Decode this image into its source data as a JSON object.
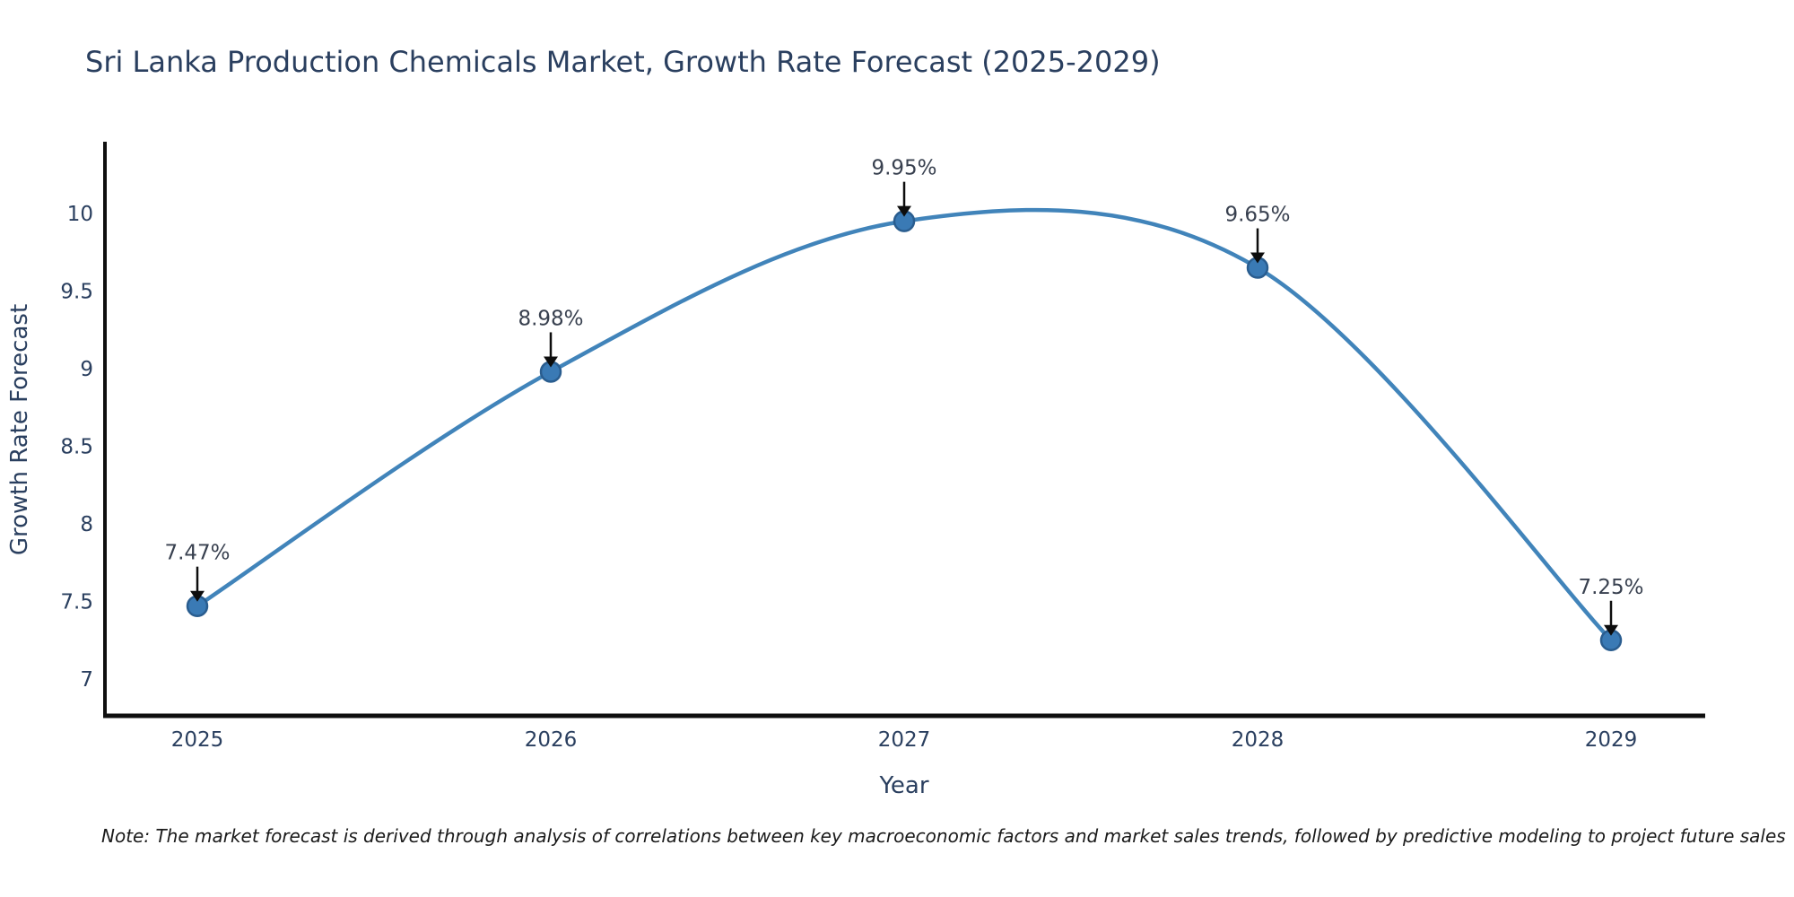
{
  "title": "Sri Lanka Production Chemicals Market, Growth Rate Forecast (2025-2029)",
  "note": "Note: The market forecast is derived through analysis of correlations between key macroeconomic factors and market sales trends, followed by predictive modeling to project future sales",
  "chart_data": {
    "type": "line",
    "x": [
      2025,
      2026,
      2027,
      2028,
      2029
    ],
    "values": [
      7.47,
      8.98,
      9.95,
      9.65,
      7.25
    ],
    "point_labels": [
      "7.47%",
      "8.98%",
      "9.95%",
      "9.65%",
      "7.25%"
    ],
    "title": "Sri Lanka Production Chemicals Market, Growth Rate Forecast (2025-2029)",
    "xlabel": "Year",
    "ylabel": "Growth Rate Forecast",
    "y_ticks": [
      7,
      7.5,
      8,
      8.5,
      9,
      9.5,
      10
    ],
    "ylim": [
      6.76,
      10.47
    ],
    "grid": false,
    "legend": "none",
    "smooth": true,
    "colors": {
      "line": "#4184ba",
      "marker_fill": "#3a7ab5",
      "marker_edge": "#2a5d8f",
      "annotation_arrow": "#0d0d0d",
      "axis_spine": "#0f0f0f",
      "text": "#2a3f5f"
    }
  }
}
